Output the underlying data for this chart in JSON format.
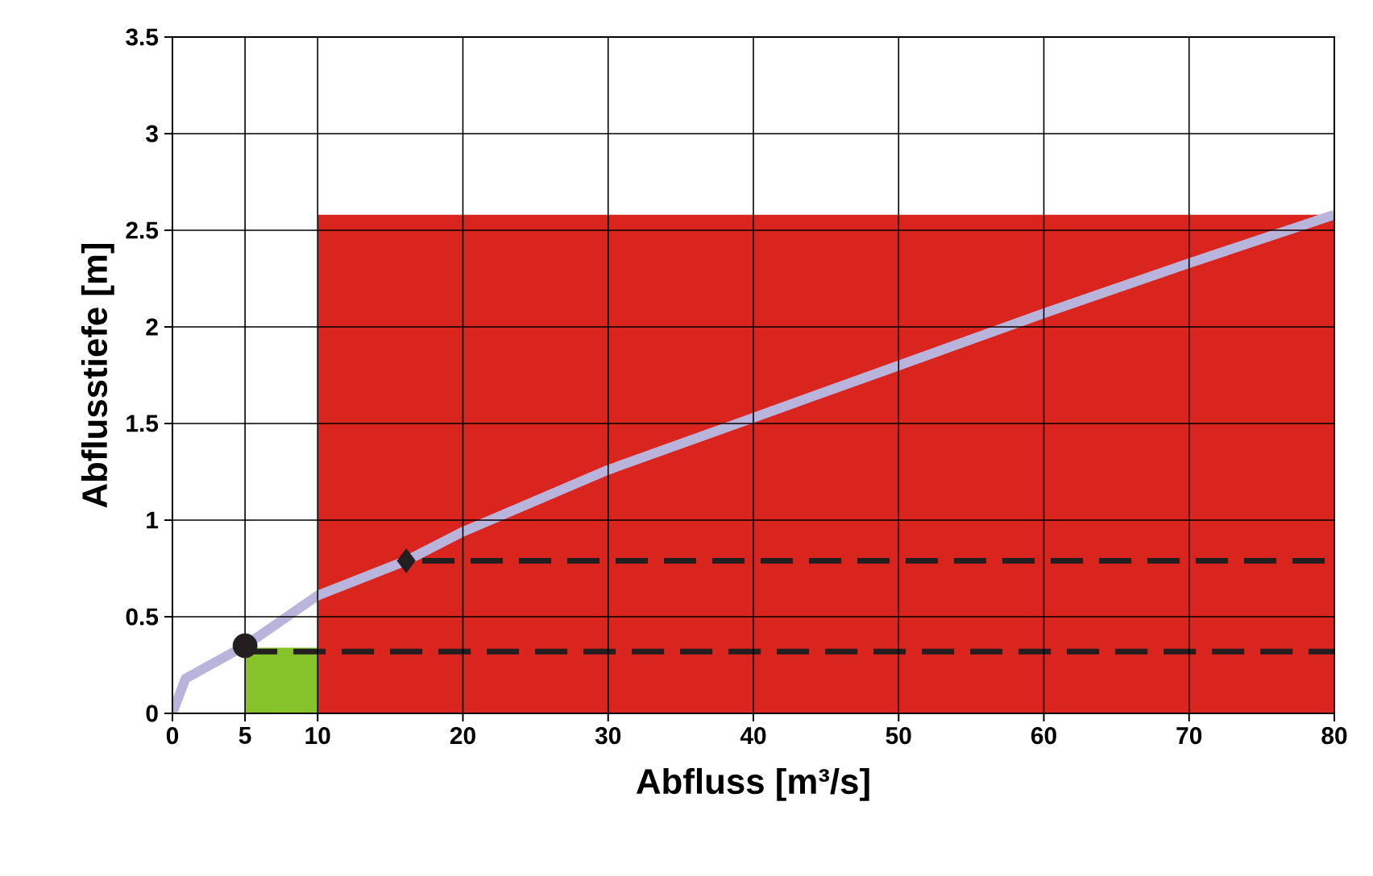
{
  "chart_data": {
    "type": "line",
    "xlabel": "Abfluss [m³/s]",
    "ylabel": "Abflusstiefe [m]",
    "xlim": [
      0,
      80
    ],
    "ylim": [
      0,
      3.5
    ],
    "xticks": [
      0,
      5,
      10,
      20,
      30,
      40,
      50,
      60,
      70,
      80
    ],
    "yticks": [
      0,
      0.5,
      1,
      1.5,
      2,
      2.5,
      3,
      3.5
    ],
    "grid": true,
    "series": [
      {
        "type": "area",
        "color": "#d9251d",
        "x": [
          10,
          80
        ],
        "values": [
          2.58,
          2.58
        ]
      },
      {
        "type": "area",
        "color": "#86c22a",
        "x": [
          5,
          10
        ],
        "values": [
          0.34,
          0.34
        ]
      },
      {
        "color": "#b8b4dc",
        "x": [
          0,
          0.9,
          5,
          10,
          16.1,
          20,
          30,
          40,
          50,
          60,
          70,
          80
        ],
        "values": [
          0,
          0.18,
          0.35,
          0.61,
          0.79,
          0.94,
          1.26,
          1.53,
          1.8,
          2.07,
          2.33,
          2.58
        ]
      },
      {
        "type": "line",
        "color": "#231f20",
        "line_style": "dashed",
        "x": [
          5,
          80
        ],
        "values": [
          0.32,
          0.32
        ]
      },
      {
        "type": "line",
        "color": "#231f20",
        "line_style": "dashed",
        "x": [
          17.2,
          80
        ],
        "values": [
          0.79,
          0.79
        ]
      },
      {
        "type": "scatter",
        "color": "#231f20",
        "marker": "circle",
        "x": [
          5
        ],
        "values": [
          0.35
        ]
      },
      {
        "type": "scatter",
        "color": "#231f20",
        "marker": "diamond",
        "x": [
          16.1
        ],
        "values": [
          0.79
        ]
      }
    ]
  }
}
